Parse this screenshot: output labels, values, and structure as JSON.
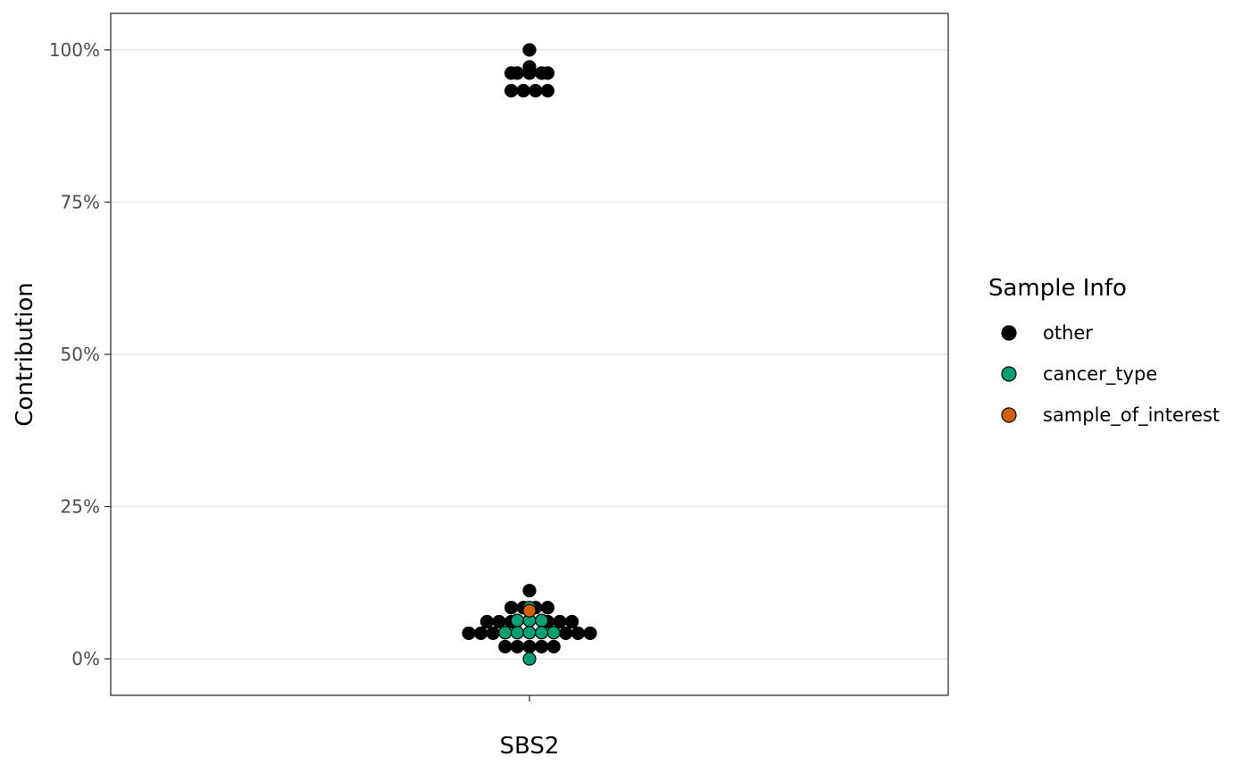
{
  "chart_data": {
    "type": "scatter",
    "subtype": "dotplot",
    "title": "",
    "xlabel": "",
    "ylabel": "Contribution",
    "categories": [
      "SBS2"
    ],
    "ylim": [
      -0.06,
      1.06
    ],
    "y_ticks": [
      0,
      0.25,
      0.5,
      0.75,
      1.0
    ],
    "y_tick_labels": [
      "0%",
      "25%",
      "50%",
      "75%",
      "100%"
    ],
    "grid": "horizontal-major",
    "legend": {
      "title": "Sample Info",
      "placement": "right",
      "items": [
        {
          "label": "other",
          "color": "#000000"
        },
        {
          "label": "cancer_type",
          "color": "#009E73"
        },
        {
          "label": "sample_of_interest",
          "color": "#D55E00"
        }
      ]
    },
    "series": [
      {
        "name": "other",
        "color": "#000000",
        "points": [
          {
            "x_offset": 0,
            "y": 1.0
          },
          {
            "x_offset": 0,
            "y": 0.972
          },
          {
            "x_offset": -1,
            "y": 0.962
          },
          {
            "x_offset": 0,
            "y": 0.962
          },
          {
            "x_offset": 1,
            "y": 0.962
          },
          {
            "x_offset": -1.5,
            "y": 0.962
          },
          {
            "x_offset": 1.5,
            "y": 0.962
          },
          {
            "x_offset": -1.5,
            "y": 0.933
          },
          {
            "x_offset": -0.5,
            "y": 0.933
          },
          {
            "x_offset": 0.5,
            "y": 0.933
          },
          {
            "x_offset": 1.5,
            "y": 0.933
          },
          {
            "x_offset": 0,
            "y": 0.112
          },
          {
            "x_offset": -1.5,
            "y": 0.084
          },
          {
            "x_offset": -0.5,
            "y": 0.084
          },
          {
            "x_offset": 0.5,
            "y": 0.084
          },
          {
            "x_offset": 1.5,
            "y": 0.084
          },
          {
            "x_offset": -3.5,
            "y": 0.061
          },
          {
            "x_offset": -2.5,
            "y": 0.061
          },
          {
            "x_offset": -1.5,
            "y": 0.061
          },
          {
            "x_offset": 1.5,
            "y": 0.061
          },
          {
            "x_offset": 2.5,
            "y": 0.061
          },
          {
            "x_offset": 3.5,
            "y": 0.061
          },
          {
            "x_offset": -5,
            "y": 0.042
          },
          {
            "x_offset": -4,
            "y": 0.042
          },
          {
            "x_offset": -3,
            "y": 0.042
          },
          {
            "x_offset": 3,
            "y": 0.042
          },
          {
            "x_offset": 4,
            "y": 0.042
          },
          {
            "x_offset": 5,
            "y": 0.042
          },
          {
            "x_offset": -2,
            "y": 0.02
          },
          {
            "x_offset": -1,
            "y": 0.02
          },
          {
            "x_offset": 0,
            "y": 0.02
          },
          {
            "x_offset": 1,
            "y": 0.02
          },
          {
            "x_offset": 2,
            "y": 0.02
          }
        ]
      },
      {
        "name": "cancer_type",
        "color": "#009E73",
        "points": [
          {
            "x_offset": 0,
            "y": 0.084
          },
          {
            "x_offset": -1,
            "y": 0.063
          },
          {
            "x_offset": 0,
            "y": 0.063
          },
          {
            "x_offset": 1,
            "y": 0.063
          },
          {
            "x_offset": -2,
            "y": 0.043
          },
          {
            "x_offset": -1,
            "y": 0.043
          },
          {
            "x_offset": 0,
            "y": 0.043
          },
          {
            "x_offset": 1,
            "y": 0.043
          },
          {
            "x_offset": 2,
            "y": 0.043
          },
          {
            "x_offset": 0,
            "y": 0.0
          }
        ]
      },
      {
        "name": "sample_of_interest",
        "color": "#D55E00",
        "points": [
          {
            "x_offset": 0,
            "y": 0.079
          }
        ]
      }
    ]
  }
}
